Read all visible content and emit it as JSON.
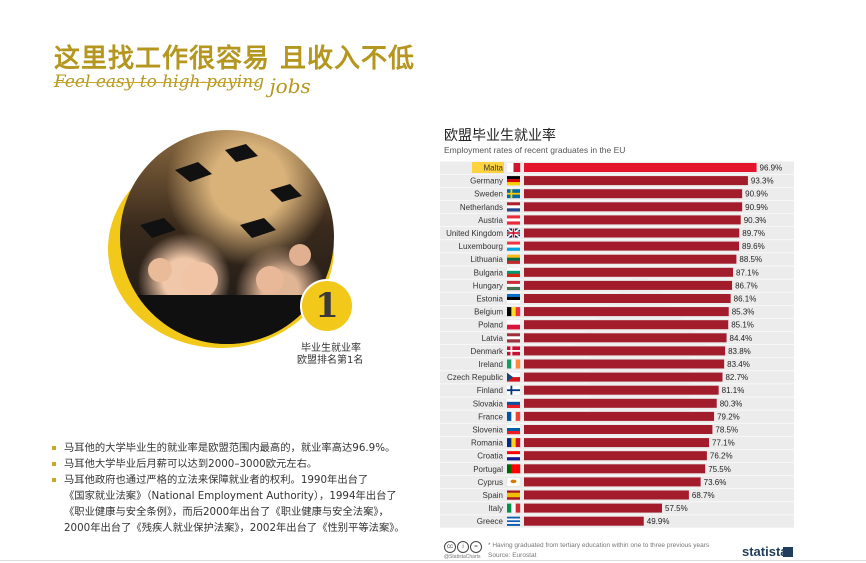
{
  "header": {
    "title_cn": "这里找工作很容易 且收入不低",
    "subtitle_part1": "Feel easy to high-paying",
    "subtitle_part2": "jobs"
  },
  "badge": {
    "number": "1",
    "line1": "毕业生就业率",
    "line2": "欧盟排名第1名"
  },
  "bullets": [
    {
      "line1": "马耳他的大学毕业生的就业率是欧盟范围内最高的，就业率高达96.9%。"
    },
    {
      "line1": "马耳他大学毕业后月薪可以达到2000–3000欧元左右。"
    },
    {
      "line1": "马耳他政府也通过严格的立法来保障就业者的权利。1990年出台了",
      "line2": "《国家就业法案》（National Employment Authority），1994年出台了",
      "line3": "《职业健康与安全条例》，而后2000年出台了《职业健康与安全法案》，",
      "line4": "2000年出台了《残疾人就业保护法案》，2002年出台了《性别平等法案》。"
    }
  ],
  "chart_data": {
    "type": "bar",
    "orientation": "horizontal",
    "title": "欧盟毕业生就业率",
    "subtitle": "Employment rates of recent graduates in the EU",
    "categories": [
      "Malta",
      "Germany",
      "Sweden",
      "Netherlands",
      "Austria",
      "United Kingdom",
      "Luxembourg",
      "Lithuania",
      "Bulgaria",
      "Hungary",
      "Estonia",
      "Belgium",
      "Poland",
      "Latvia",
      "Denmark",
      "Ireland",
      "Czech Republic",
      "Finland",
      "Slovakia",
      "France",
      "Slovenia",
      "Romania",
      "Croatia",
      "Portugal",
      "Cyprus",
      "Spain",
      "Italy",
      "Greece"
    ],
    "values": [
      96.9,
      93.3,
      90.9,
      90.9,
      90.3,
      89.7,
      89.6,
      88.5,
      87.1,
      86.7,
      86.1,
      85.3,
      85.1,
      84.4,
      83.8,
      83.4,
      82.7,
      81.1,
      80.3,
      79.2,
      78.5,
      77.1,
      76.2,
      75.5,
      73.6,
      68.7,
      57.5,
      49.9
    ],
    "labels": [
      "96.9%",
      "93.3%",
      "90.9%",
      "90.9%",
      "90.3%",
      "89.7%",
      "89.6%",
      "88.5%",
      "87.1%",
      "86.7%",
      "86.1%",
      "85.3%",
      "85.1%",
      "84.4%",
      "83.8%",
      "83.4%",
      "82.7%",
      "81.1%",
      "80.3%",
      "79.2%",
      "78.5%",
      "77.1%",
      "76.2%",
      "75.5%",
      "73.6%",
      "68.7%",
      "57.5%",
      "49.9%"
    ],
    "flags": [
      {
        "type": "v",
        "colors": [
          "#ffffff",
          "#cf142b"
        ]
      },
      {
        "type": "h",
        "colors": [
          "#000000",
          "#dd0000",
          "#ffce00"
        ]
      },
      {
        "type": "cross",
        "colors": [
          "#006aa7",
          "#fecc00"
        ]
      },
      {
        "type": "h",
        "colors": [
          "#ae1c28",
          "#ffffff",
          "#21468b"
        ]
      },
      {
        "type": "h",
        "colors": [
          "#ed2939",
          "#ffffff",
          "#ed2939"
        ]
      },
      {
        "type": "uk",
        "colors": [
          "#012169",
          "#ffffff",
          "#c8102e"
        ]
      },
      {
        "type": "h",
        "colors": [
          "#ef3340",
          "#ffffff",
          "#00a3e0"
        ]
      },
      {
        "type": "h",
        "colors": [
          "#fdb913",
          "#006a44",
          "#c1272d"
        ]
      },
      {
        "type": "h",
        "colors": [
          "#ffffff",
          "#00966e",
          "#d62612"
        ]
      },
      {
        "type": "h",
        "colors": [
          "#ce2939",
          "#ffffff",
          "#477050"
        ]
      },
      {
        "type": "h",
        "colors": [
          "#0072ce",
          "#000000",
          "#ffffff"
        ]
      },
      {
        "type": "v",
        "colors": [
          "#000000",
          "#fdda24",
          "#ef3340"
        ]
      },
      {
        "type": "h",
        "colors": [
          "#ffffff",
          "#dc143c"
        ]
      },
      {
        "type": "h",
        "colors": [
          "#9e3039",
          "#ffffff",
          "#9e3039"
        ]
      },
      {
        "type": "cross",
        "colors": [
          "#c8102e",
          "#ffffff"
        ]
      },
      {
        "type": "v",
        "colors": [
          "#169b62",
          "#ffffff",
          "#ff883e"
        ]
      },
      {
        "type": "tri",
        "colors": [
          "#ffffff",
          "#d7141a",
          "#11457e"
        ]
      },
      {
        "type": "cross",
        "colors": [
          "#ffffff",
          "#003580"
        ]
      },
      {
        "type": "h",
        "colors": [
          "#ffffff",
          "#0b4ea2",
          "#ee1c25"
        ]
      },
      {
        "type": "v",
        "colors": [
          "#0055a4",
          "#ffffff",
          "#ef4135"
        ]
      },
      {
        "type": "h",
        "colors": [
          "#ffffff",
          "#005da4",
          "#ed1c24"
        ]
      },
      {
        "type": "v",
        "colors": [
          "#002b7f",
          "#fcd116",
          "#ce1126"
        ]
      },
      {
        "type": "h",
        "colors": [
          "#ff0000",
          "#ffffff",
          "#171796"
        ]
      },
      {
        "type": "v",
        "colors": [
          "#006600",
          "#ff0000",
          "#ff0000"
        ]
      },
      {
        "type": "cy",
        "colors": [
          "#ffffff",
          "#d57800"
        ]
      },
      {
        "type": "h",
        "colors": [
          "#aa151b",
          "#f1bf00",
          "#f1bf00",
          "#aa151b"
        ]
      },
      {
        "type": "v",
        "colors": [
          "#009246",
          "#ffffff",
          "#ce2b37"
        ]
      },
      {
        "type": "h",
        "colors": [
          "#0d5eaf",
          "#ffffff",
          "#0d5eaf",
          "#ffffff",
          "#0d5eaf"
        ]
      }
    ],
    "highlight_category": "Malta",
    "highlight_color": "#ffd23f",
    "bar_color": "#a31c2b",
    "highlight_bar_color": "#e3142c",
    "xlim": [
      0,
      100
    ],
    "footnote": "* Having graduated from tertiary education within one to three previous years",
    "source": "Source: Eurostat",
    "credit": "@StatistaCharts",
    "brand": "statista"
  }
}
